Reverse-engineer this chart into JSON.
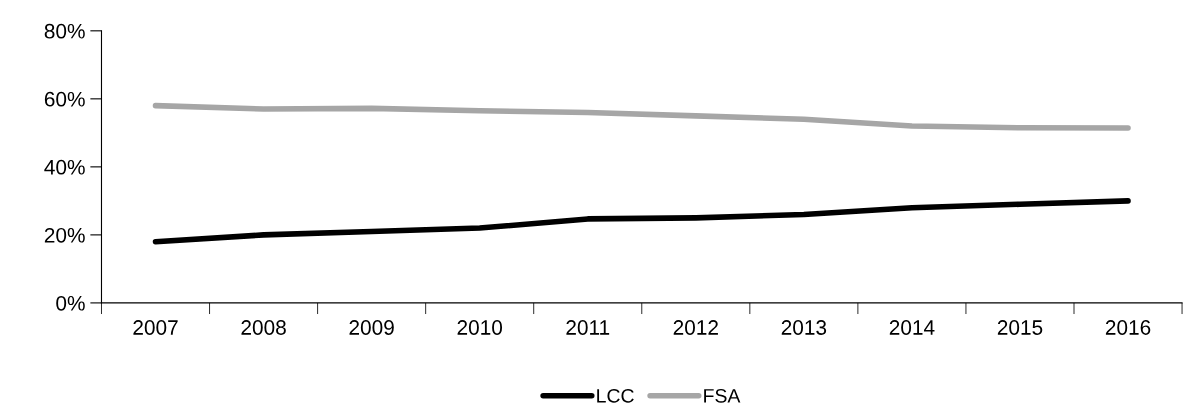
{
  "chart_data": {
    "type": "line",
    "categories": [
      "2007",
      "2008",
      "2009",
      "2010",
      "2011",
      "2012",
      "2013",
      "2014",
      "2015",
      "2016"
    ],
    "series": [
      {
        "name": "LCC",
        "color": "#000000",
        "values": [
          18,
          20,
          21,
          22,
          24.7,
          25,
          26,
          28,
          29,
          30
        ]
      },
      {
        "name": "FSA",
        "color": "#a6a6a6",
        "values": [
          58,
          57,
          57.2,
          56.5,
          56,
          55,
          54,
          52,
          51.5,
          51.4
        ]
      }
    ],
    "ylim": [
      0,
      80
    ],
    "yticks": [
      {
        "value": 0,
        "label": "0%"
      },
      {
        "value": 20,
        "label": "20%"
      },
      {
        "value": 40,
        "label": "40%"
      },
      {
        "value": 60,
        "label": "60%"
      },
      {
        "value": 80,
        "label": "80%"
      }
    ],
    "grid": false,
    "legend": "bottom",
    "marker": "none",
    "line_style": "solid"
  }
}
